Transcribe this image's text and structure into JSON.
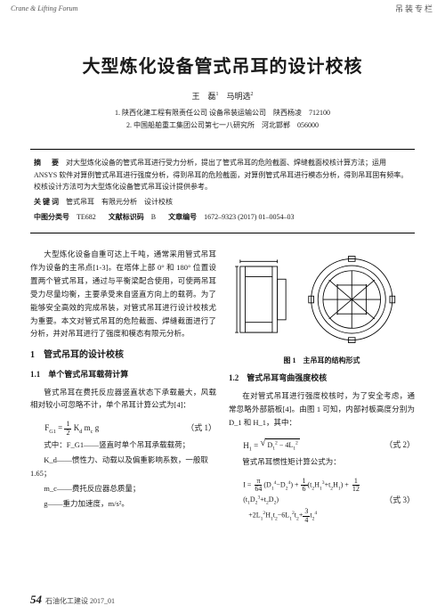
{
  "header": {
    "left_en": "Crane & Lifting Forum",
    "right_cn": "吊装专栏"
  },
  "title": "大型炼化设备管式吊耳的设计校核",
  "authors_html": "王　磊<sup>1</sup>　马明选<sup>2</sup>",
  "affiliations": [
    "1. 陕西化建工程有限责任公司 设备吊装运输公司　陕西杨凌　712100",
    "2. 中国船舶重工集团公司第七一八研究所　河北邯郸　056000"
  ],
  "abstract": {
    "label": "摘　要",
    "text": "对大型炼化设备的管式吊耳进行受力分析，提出了管式吊耳的危险截面、焊缝截面校核计算方法；运用 ANSYS 软件对算例管式吊耳进行强度分析，得到吊耳的危险截面，对算例管式吊耳进行模态分析，得到吊耳固有频率。校核设计方法可为大型炼化设备管式吊耳设计提供参考。"
  },
  "keywords": {
    "label": "关键词",
    "text": "管式吊耳　有限元分析　设计校核"
  },
  "class_row": {
    "clc": {
      "label": "中图分类号",
      "value": "TE682"
    },
    "doc": {
      "label": "文献标识码",
      "value": "B"
    },
    "art": {
      "label": "文章编号",
      "value": "1672–9323 (2017) 01–0054–03"
    }
  },
  "intro": "大型炼化设备自重可达上千吨，通常采用管式吊耳作为设备的主吊点[1-3]。在塔体上部 0° 和 180° 位置设置两个管式吊耳，通过与平衡梁配合使用，可使两吊耳受力尽量均衡，主要承受来自竖直方向上的载荷。为了能够安全高效的完成吊装，对管式吊耳进行设计校核尤为重要。本文对管式吊耳的危险截面、焊缝截面进行了分析，并对吊耳进行了强度和模态有限元分析。",
  "sec1": {
    "num": "1",
    "title": "管式吊耳的设计校核"
  },
  "sec11": {
    "num": "1.1",
    "title": "单个管式吊耳载荷计算",
    "para": "管式吊耳在费托反应器竖直状态下承载最大，风载相对较小可忽略不计，单个吊耳计算公式为[4]："
  },
  "eq1": {
    "num": "（式 1）"
  },
  "defs": [
    "式中：F_G1——竖直时单个吊耳承载载荷；",
    "K_d——惯性力、动载以及偏重影响系数，一般取 1.65；",
    "m_c——费托反应器总质量；",
    "g——重力加速度，m/s²。"
  ],
  "fig1": {
    "caption": "图 1　主吊耳的结构形式"
  },
  "sec12": {
    "num": "1.2",
    "title": "管式吊耳弯曲强度校核",
    "para1": "在对管式吊耳进行强度校核时，为了安全考虑，通常忽略外部筋板[4]。由图 1 可知，内部衬板高度分别为 D_1 和 H_1，其中：",
    "para2": "管式吊耳惯性矩计算公式为："
  },
  "eq2": {
    "num": "（式 2）"
  },
  "eq3": {
    "num": "（式 3）"
  },
  "footer": {
    "page": "54",
    "src": "石油化工建设 2017_01"
  },
  "colors": {
    "text": "#1a1a1a",
    "muted": "#555555",
    "rule": "#000000",
    "bg": "#ffffff"
  }
}
